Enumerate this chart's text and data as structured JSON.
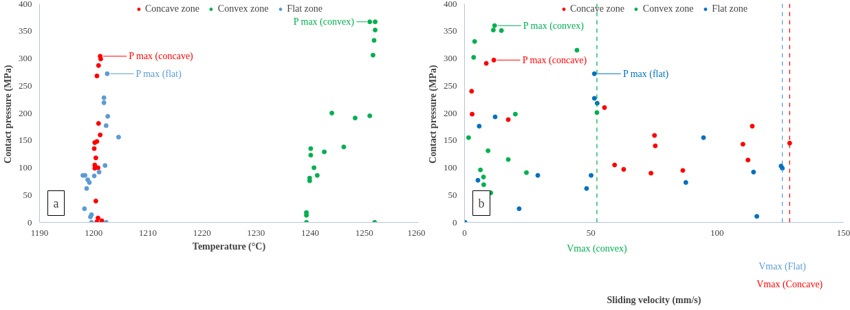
{
  "chart_data": [
    {
      "type": "scatter",
      "xlabel": "Temperature (°C)",
      "ylabel": "Contact pressure  (MPa)",
      "xlim": [
        1190,
        1260
      ],
      "ylim": [
        0,
        400
      ],
      "xticks": [
        1190,
        1200,
        1210,
        1220,
        1230,
        1240,
        1250,
        1260
      ],
      "yticks": [
        0,
        50,
        100,
        150,
        200,
        250,
        300,
        350,
        400
      ],
      "legend": "top",
      "marker": "circle",
      "series": [
        {
          "name": "Concave zone",
          "color": "#ff0000",
          "x": [
            1201.2,
            1201.3,
            1200.9,
            1200.6,
            1200.9,
            1201.2,
            1200.6,
            1200.2,
            1200.1,
            1200.4,
            1200.2,
            1200.2,
            1200.8,
            1200.4,
            1200.8,
            1200.6,
            1201.5
          ],
          "values": [
            304,
            299,
            287,
            268,
            181,
            160,
            148,
            146,
            135,
            118,
            105,
            99,
            100,
            39,
            8,
            1,
            3
          ]
        },
        {
          "name": "Convex zone",
          "color": "#00b050",
          "x": [
            1251,
            1252,
            1252,
            1251.8,
            1251.6,
            1251,
            1248.3,
            1246.2,
            1244,
            1242.6,
            1240.1,
            1240.1,
            1240.7,
            1241.3,
            1239.9,
            1239.9,
            1239.3,
            1239.3,
            1239.3,
            1251.9
          ],
          "values": [
            367,
            367,
            352,
            333,
            306,
            195,
            191,
            138,
            200,
            129,
            135,
            123,
            100,
            86,
            81,
            76,
            18,
            13,
            0,
            0
          ]
        },
        {
          "name": "Flat zone",
          "color": "#5b9bd5",
          "x": [
            1202.5,
            1201.9,
            1201.9,
            1202.6,
            1202.3,
            1204.6,
            1202.1,
            1201,
            1200.1,
            1198,
            1198.4,
            1198.9,
            1199.2,
            1198.7,
            1198.3,
            1199.6,
            1199.4,
            1199.6,
            1202.3
          ],
          "values": [
            272,
            228,
            219,
            194,
            177,
            156,
            104,
            92,
            85,
            86,
            86,
            78,
            73,
            62,
            25,
            14,
            10,
            0,
            0
          ]
        }
      ],
      "annotations": [
        "a",
        {
          "text": "P max (concave)",
          "x": 1201.2,
          "y": 304
        },
        {
          "text": "P max (flat)",
          "x": 1202.5,
          "y": 272
        },
        {
          "text": "P max (convex)",
          "x": 1251,
          "y": 367
        }
      ]
    },
    {
      "type": "scatter",
      "xlabel": "Sliding velocity (mm/s)",
      "ylabel": "Contact pressure  (MPa)",
      "xlim": [
        0,
        150
      ],
      "ylim": [
        0,
        400
      ],
      "xticks": [
        0,
        50,
        100,
        150
      ],
      "yticks": [
        0,
        50,
        100,
        150,
        200,
        250,
        300,
        350,
        400
      ],
      "legend": "top",
      "marker": "circle",
      "series": [
        {
          "name": "Concave zone",
          "color": "#ff0000",
          "x": [
            8.6,
            11.6,
            2.8,
            3.0,
            17.3,
            55.4,
            59.4,
            63.0,
            75.2,
            75.5,
            73.8,
            86.4,
            110.2,
            113.9,
            112.2,
            128.7
          ],
          "values": [
            291,
            297,
            240,
            198,
            188,
            210,
            105,
            97,
            159,
            140,
            90,
            95,
            143,
            176,
            114,
            145
          ]
        },
        {
          "name": "Convex zone",
          "color": "#00b050",
          "x": [
            11.9,
            11.4,
            14.6,
            4.0,
            44.5,
            3.6,
            20.1,
            52.4,
            1.6,
            9.3,
            17.3,
            6.3,
            24.5,
            7.5,
            7.6,
            10.4
          ],
          "values": [
            360,
            352,
            351,
            331,
            315,
            302,
            198,
            201,
            155,
            131,
            115,
            96,
            91,
            83,
            69,
            54
          ]
        },
        {
          "name": "Flat zone",
          "color": "#0070c0",
          "x": [
            51.4,
            51.4,
            52.5,
            12.1,
            5.8,
            5.3,
            29.0,
            50.1,
            48.3,
            21.6,
            0.2,
            94.6,
            114.4,
            125.3,
            125.8,
            115.7,
            87.6
          ],
          "values": [
            272,
            227,
            218,
            193,
            176,
            77,
            86,
            86,
            62,
            25,
            0,
            155,
            92,
            103,
            99,
            11,
            73
          ]
        }
      ],
      "ref_lines": [
        {
          "axis": "x",
          "value": 52.4,
          "label": "Vmax (convex)",
          "color": "#00b050",
          "line_style": "dashed"
        },
        {
          "axis": "x",
          "value": 125.8,
          "label": "Vmax (Flat)",
          "color": "#5b9bd5",
          "line_style": "dashed"
        },
        {
          "axis": "x",
          "value": 128.7,
          "label": "Vmax (Concave)",
          "color": "#ff0000",
          "line_style": "dashed"
        }
      ],
      "annotations": [
        "b",
        {
          "text": "P max (convex)",
          "x": 11.9,
          "y": 360
        },
        {
          "text": "P max (concave)",
          "x": 11.6,
          "y": 297
        },
        {
          "text": "P max (flat)",
          "x": 51.4,
          "y": 272
        }
      ]
    }
  ]
}
